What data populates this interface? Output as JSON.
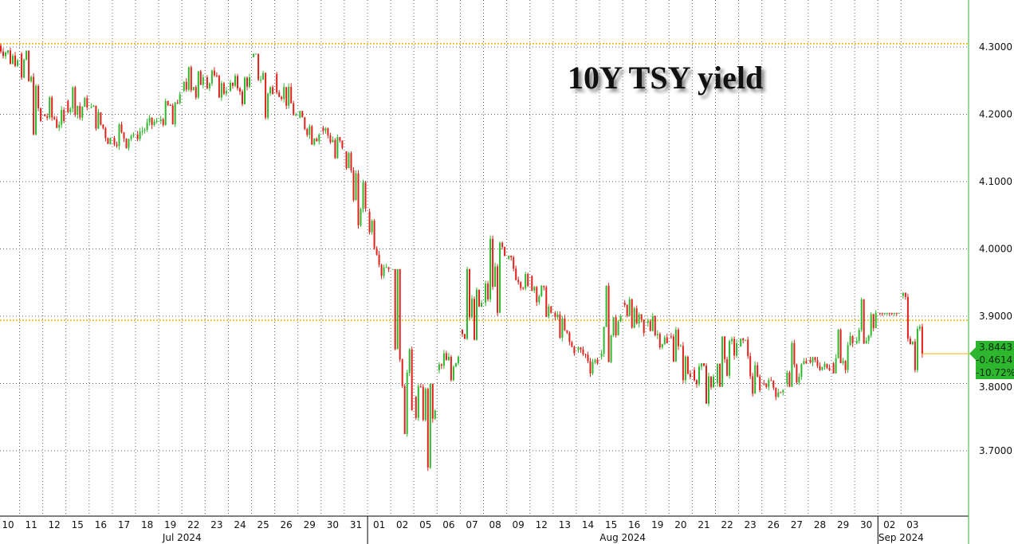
{
  "chart_data": {
    "type": "candlestick",
    "title": "10Y TSY yield",
    "ylim": [
      3.62,
      4.36
    ],
    "yticks": [
      "4.3000",
      "4.2000",
      "4.1000",
      "4.0000",
      "3.9000",
      "3.8000",
      "3.7000"
    ],
    "ytick_values": [
      4.3,
      4.2,
      4.1,
      4.0,
      3.9,
      3.8,
      3.7
    ],
    "grid": true,
    "x_labels": [
      "10",
      "11",
      "12",
      "15",
      "16",
      "17",
      "18",
      "19",
      "22",
      "23",
      "24",
      "25",
      "26",
      "29",
      "30",
      "31",
      "01",
      "02",
      "05",
      "06",
      "07",
      "08",
      "09",
      "12",
      "13",
      "14",
      "15",
      "16",
      "19",
      "20",
      "21",
      "22",
      "23",
      "26",
      "27",
      "28",
      "29",
      "30",
      "02",
      "03"
    ],
    "months": [
      {
        "label": "Jul 2024",
        "start": 0,
        "end": 15
      },
      {
        "label": "Aug 2024",
        "start": 16,
        "end": 37
      },
      {
        "label": "Sep 2024",
        "start": 38,
        "end": 39
      }
    ],
    "ohlc": [
      [
        4.305,
        4.31,
        4.27,
        4.28
      ],
      [
        4.29,
        4.295,
        4.165,
        4.19
      ],
      [
        4.2,
        4.23,
        4.175,
        4.19
      ],
      [
        4.22,
        4.245,
        4.19,
        4.21
      ],
      [
        4.21,
        4.22,
        4.155,
        4.165
      ],
      [
        4.165,
        4.19,
        4.145,
        4.17
      ],
      [
        4.17,
        4.2,
        4.16,
        4.19
      ],
      [
        4.19,
        4.235,
        4.18,
        4.23
      ],
      [
        4.235,
        4.275,
        4.22,
        4.255
      ],
      [
        4.255,
        4.27,
        4.22,
        4.235
      ],
      [
        4.235,
        4.265,
        4.21,
        4.255
      ],
      [
        4.285,
        4.29,
        4.19,
        4.23
      ],
      [
        4.26,
        4.265,
        4.195,
        4.2
      ],
      [
        4.195,
        4.205,
        4.15,
        4.17
      ],
      [
        4.18,
        4.185,
        4.13,
        4.15
      ],
      [
        4.145,
        4.15,
        4.03,
        4.06
      ],
      [
        4.055,
        4.06,
        3.955,
        3.97
      ],
      [
        3.97,
        3.97,
        3.72,
        3.76
      ],
      [
        3.78,
        3.8,
        3.67,
        3.76
      ],
      [
        3.82,
        3.85,
        3.8,
        3.84
      ],
      [
        3.88,
        3.975,
        3.86,
        3.92
      ],
      [
        3.92,
        4.02,
        3.9,
        3.99
      ],
      [
        3.985,
        3.99,
        3.935,
        3.945
      ],
      [
        3.96,
        3.965,
        3.895,
        3.905
      ],
      [
        3.905,
        3.91,
        3.84,
        3.845
      ],
      [
        3.85,
        3.855,
        3.81,
        3.83
      ],
      [
        3.84,
        3.95,
        3.83,
        3.9
      ],
      [
        3.92,
        3.93,
        3.87,
        3.875
      ],
      [
        3.89,
        3.905,
        3.85,
        3.86
      ],
      [
        3.87,
        3.885,
        3.8,
        3.81
      ],
      [
        3.82,
        3.83,
        3.765,
        3.81
      ],
      [
        3.8,
        3.875,
        3.795,
        3.86
      ],
      [
        3.855,
        3.87,
        3.78,
        3.79
      ],
      [
        3.8,
        3.81,
        3.775,
        3.79
      ],
      [
        3.8,
        3.865,
        3.795,
        3.83
      ],
      [
        3.835,
        3.84,
        3.81,
        3.82
      ],
      [
        3.83,
        3.885,
        3.815,
        3.86
      ],
      [
        3.86,
        3.93,
        3.85,
        3.905
      ],
      [
        3.905,
        3.905,
        3.9,
        3.905
      ],
      [
        3.93,
        3.935,
        3.815,
        3.8443
      ]
    ],
    "reference_lines": [
      4.305,
      3.894
    ],
    "last": {
      "value": "3.8443",
      "change": "-0.4614",
      "pct": "-10.72%"
    },
    "colors": {
      "up": "#2db82d",
      "down": "#e0201b",
      "reference": "#f0b400",
      "last_box": "#2fb62f"
    }
  }
}
